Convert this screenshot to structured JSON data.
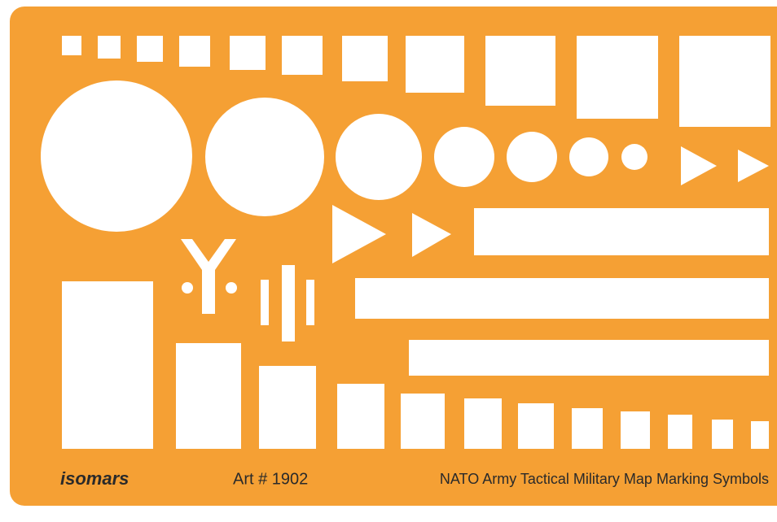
{
  "brand": "isomars",
  "article": "Art # 1902",
  "description": "NATO Army Tactical Military Map Marking Symbols"
}
